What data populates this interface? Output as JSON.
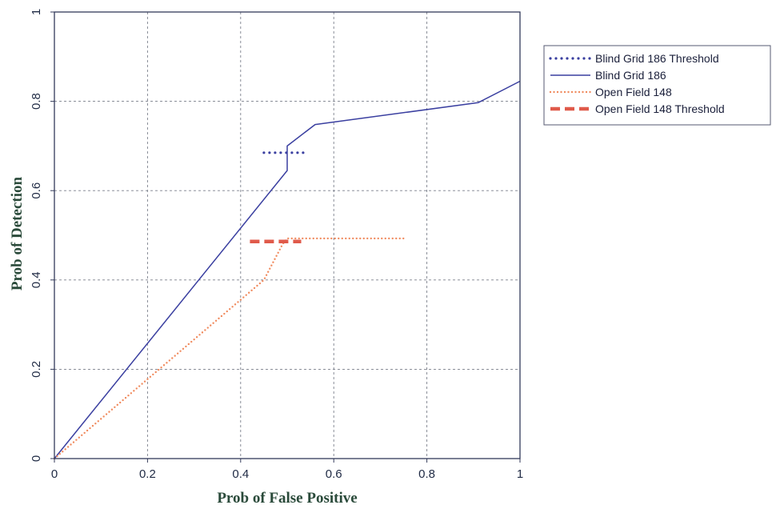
{
  "chart_data": {
    "type": "line",
    "xlabel": "Prob of False Positive",
    "ylabel": "Prob of Detection",
    "xlim": [
      0,
      1
    ],
    "ylim": [
      0,
      1
    ],
    "xticks": [
      0,
      0.2,
      0.4,
      0.6,
      0.8,
      1
    ],
    "yticks": [
      0,
      0.2,
      0.4,
      0.6,
      0.8,
      1
    ],
    "xtick_labels": [
      "0",
      "0.2",
      "0.4",
      "0.6",
      "0.8",
      "1"
    ],
    "ytick_labels": [
      "0",
      "0.2",
      "0.4",
      "0.6",
      "0.8",
      "1"
    ],
    "grid": true,
    "legend_position": "outside-right-top",
    "series": [
      {
        "name": "Blind Grid 186 Threshold",
        "style": "dotted",
        "color": "#3a3fa0",
        "x": [
          0.45,
          0.54
        ],
        "y": [
          0.685,
          0.685
        ]
      },
      {
        "name": "Blind Grid 186",
        "style": "solid",
        "color": "#3a3fa0",
        "x": [
          0,
          0.5,
          0.5,
          0.56,
          0.91,
          1.0
        ],
        "y": [
          0,
          0.645,
          0.7,
          0.748,
          0.797,
          0.845
        ]
      },
      {
        "name": "Open Field 148",
        "style": "dotted-light",
        "color": "#f08a5d",
        "x": [
          0,
          0.45,
          0.49,
          0.5,
          0.75
        ],
        "y": [
          0,
          0.4,
          0.48,
          0.493,
          0.493
        ]
      },
      {
        "name": "Open Field 148 Threshold",
        "style": "dashed",
        "color": "#e05a4a",
        "x": [
          0.42,
          0.53
        ],
        "y": [
          0.486,
          0.486
        ]
      }
    ]
  }
}
